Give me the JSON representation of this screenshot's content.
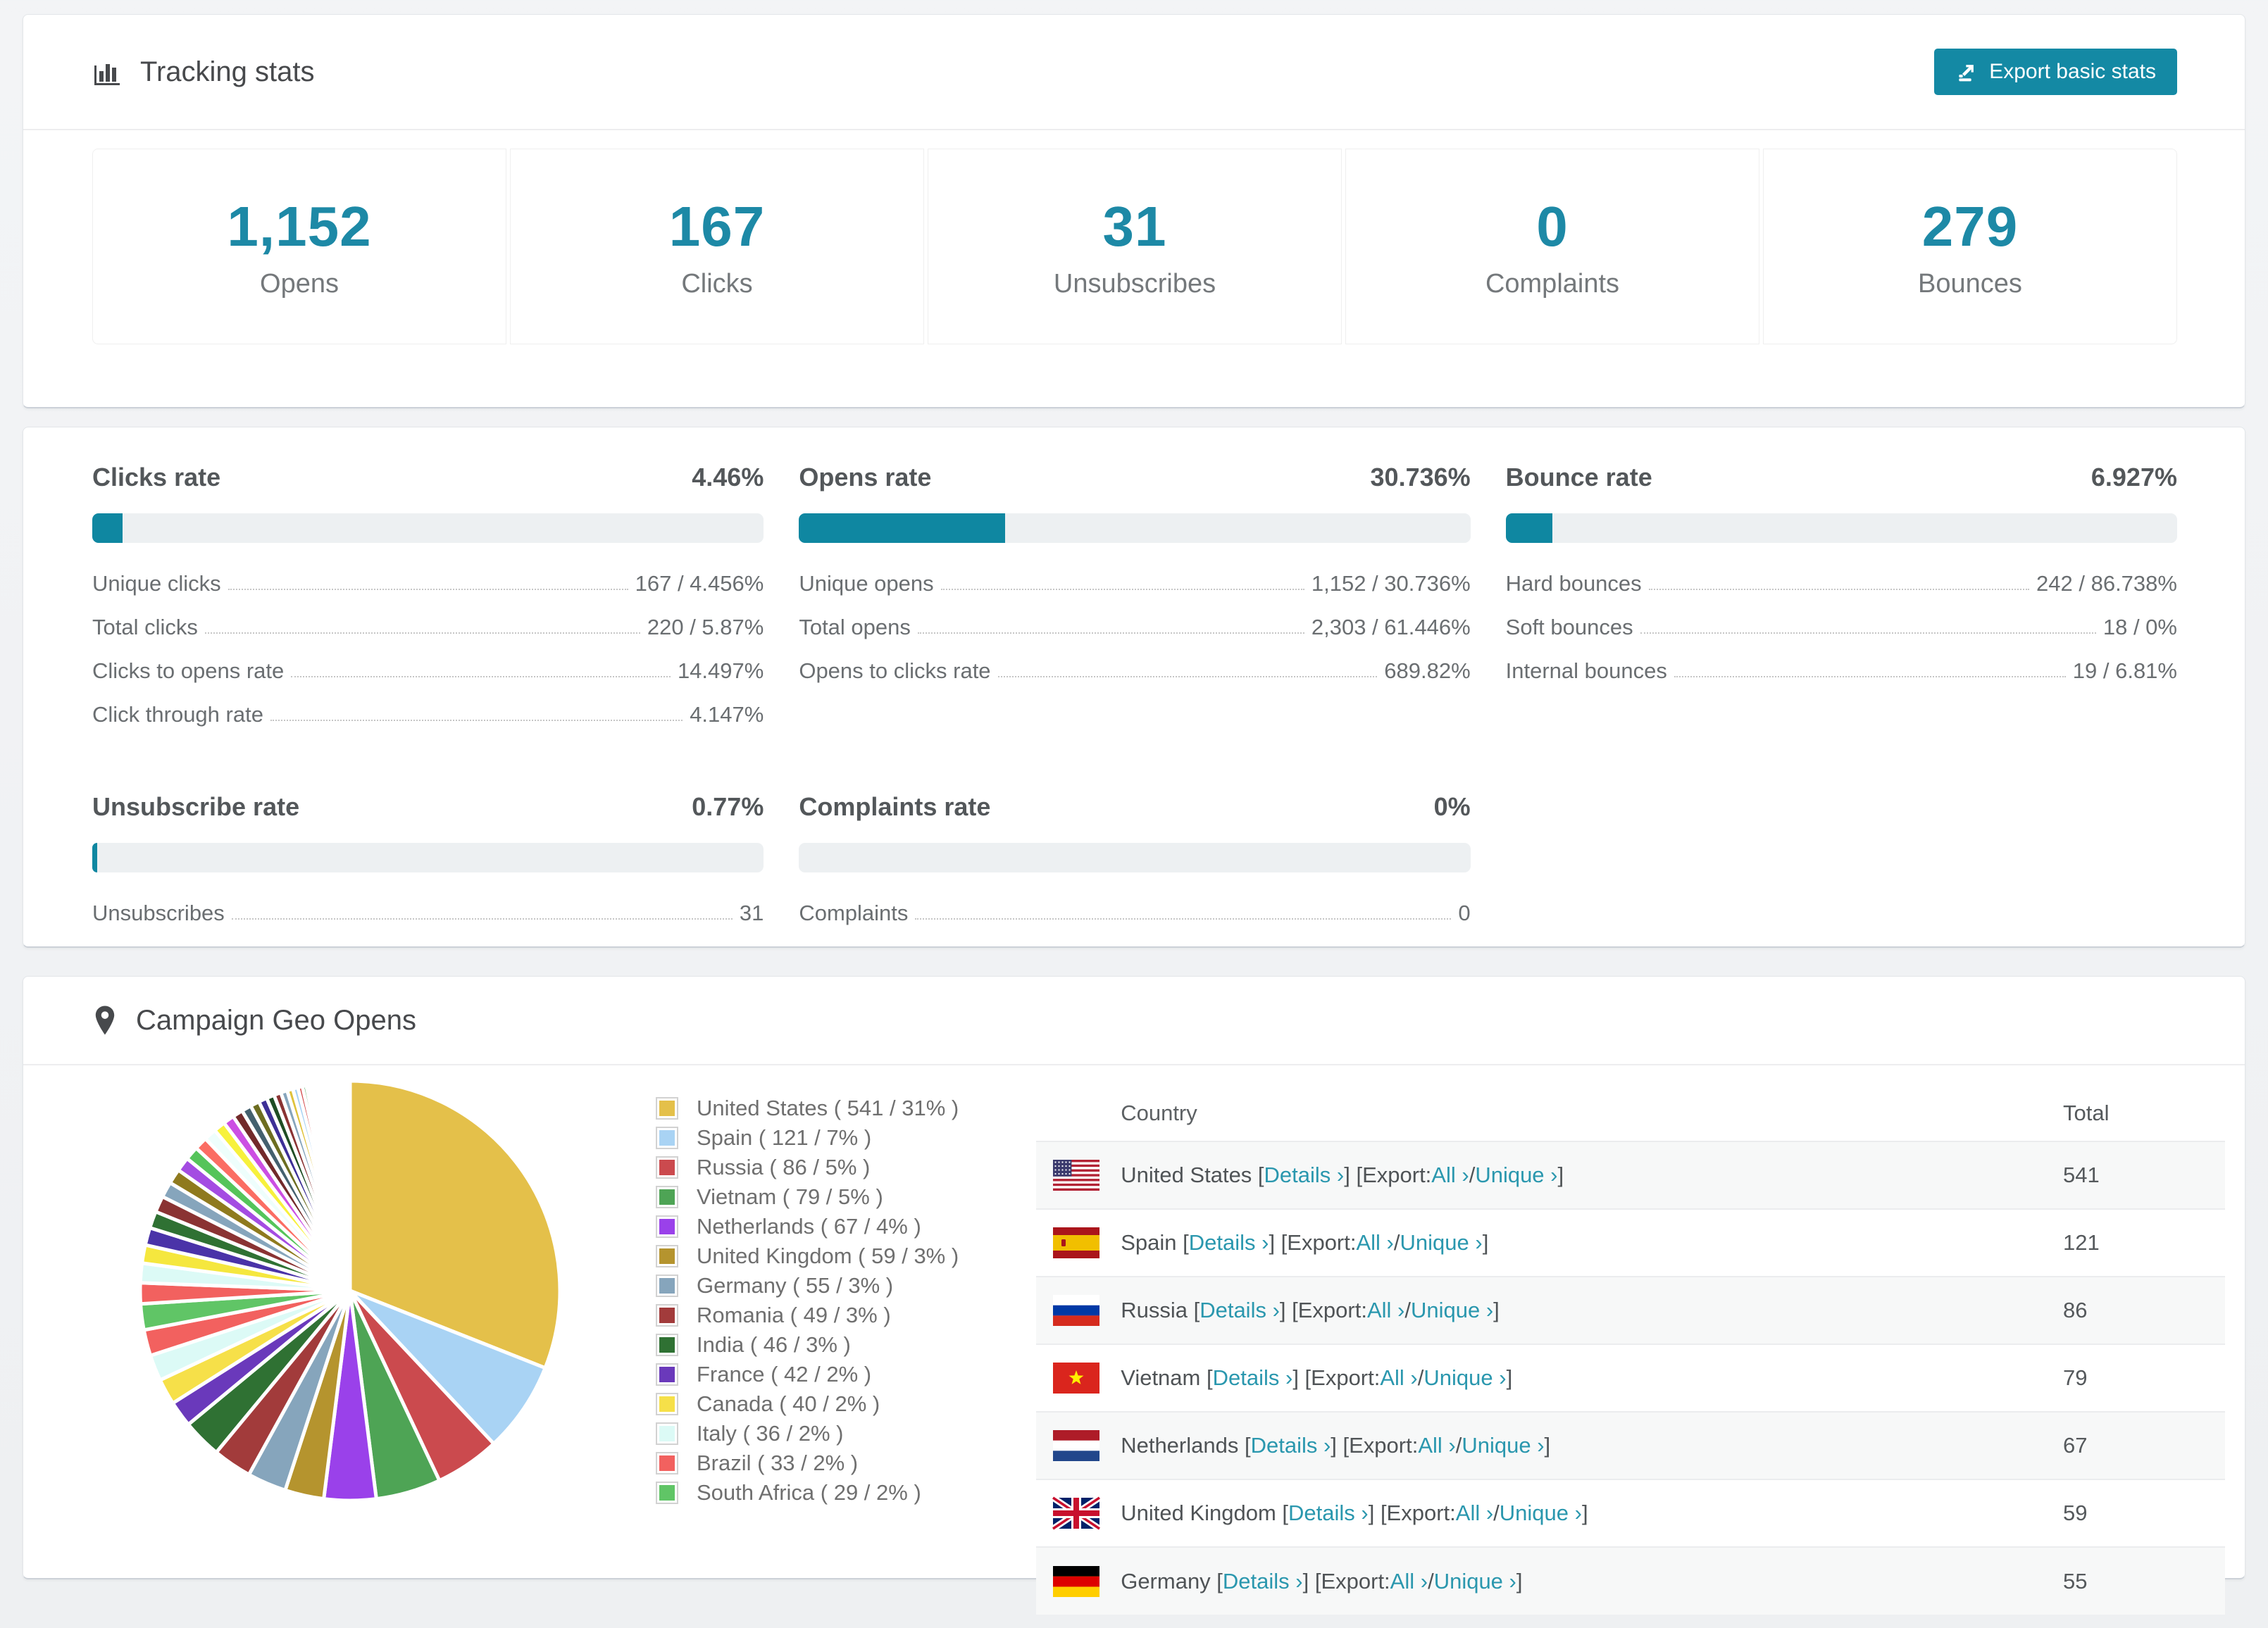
{
  "accent_color": "#0f87a1",
  "tracking": {
    "title": "Tracking stats",
    "export_button": "Export basic stats",
    "summary": [
      {
        "value": "1,152",
        "label": "Opens"
      },
      {
        "value": "167",
        "label": "Clicks"
      },
      {
        "value": "31",
        "label": "Unsubscribes"
      },
      {
        "value": "0",
        "label": "Complaints"
      },
      {
        "value": "279",
        "label": "Bounces"
      }
    ]
  },
  "rates": {
    "panels": [
      {
        "title": "Clicks rate",
        "value": "4.46%",
        "bar_percent": 4.46,
        "rows": [
          {
            "label": "Unique clicks",
            "value": "167 / 4.456%"
          },
          {
            "label": "Total clicks",
            "value": "220 / 5.87%"
          },
          {
            "label": "Clicks to opens rate",
            "value": "14.497%"
          },
          {
            "label": "Click through rate",
            "value": "4.147%"
          }
        ]
      },
      {
        "title": "Opens rate",
        "value": "30.736%",
        "bar_percent": 30.736,
        "rows": [
          {
            "label": "Unique opens",
            "value": "1,152 / 30.736%"
          },
          {
            "label": "Total opens",
            "value": "2,303 / 61.446%"
          },
          {
            "label": "Opens to clicks rate",
            "value": "689.82%"
          }
        ]
      },
      {
        "title": "Bounce rate",
        "value": "6.927%",
        "bar_percent": 6.927,
        "rows": [
          {
            "label": "Hard bounces",
            "value": "242 / 86.738%"
          },
          {
            "label": "Soft bounces",
            "value": "18 / 0%"
          },
          {
            "label": "Internal bounces",
            "value": "19 / 6.81%"
          }
        ]
      },
      {
        "title": "Unsubscribe rate",
        "value": "0.77%",
        "bar_percent": 0.77,
        "rows": [
          {
            "label": "Unsubscribes",
            "value": "31"
          }
        ]
      },
      {
        "title": "Complaints rate",
        "value": "0%",
        "bar_percent": 0,
        "rows": [
          {
            "label": "Complaints",
            "value": "0"
          }
        ]
      }
    ]
  },
  "geo": {
    "title": "Campaign Geo Opens",
    "table": {
      "headers": [
        "Country",
        "Total"
      ],
      "link_details": "Details",
      "export_prefix": "Export:",
      "link_all": "All",
      "link_unique": "Unique",
      "chevron": "›",
      "rows": [
        {
          "country": "United States",
          "flag": "us",
          "total": "541"
        },
        {
          "country": "Spain",
          "flag": "es",
          "total": "121"
        },
        {
          "country": "Russia",
          "flag": "ru",
          "total": "86"
        },
        {
          "country": "Vietnam",
          "flag": "vn",
          "total": "79"
        },
        {
          "country": "Netherlands",
          "flag": "nl",
          "total": "67"
        },
        {
          "country": "United Kingdom",
          "flag": "gb",
          "total": "59"
        },
        {
          "country": "Germany",
          "flag": "de",
          "total": "55"
        }
      ]
    }
  },
  "chart_data": {
    "type": "pie",
    "title": "Campaign Geo Opens",
    "legend_position": "right",
    "series": [
      {
        "name": "United States",
        "value": 541,
        "percent": 31,
        "color": "#e4c04a"
      },
      {
        "name": "Spain",
        "value": 121,
        "percent": 7,
        "color": "#a9d3f4"
      },
      {
        "name": "Russia",
        "value": 86,
        "percent": 5,
        "color": "#cb4a4e"
      },
      {
        "name": "Vietnam",
        "value": 79,
        "percent": 5,
        "color": "#4ea455"
      },
      {
        "name": "Netherlands",
        "value": 67,
        "percent": 4,
        "color": "#9a41ea"
      },
      {
        "name": "United Kingdom",
        "value": 59,
        "percent": 3,
        "color": "#b5942e"
      },
      {
        "name": "Germany",
        "value": 55,
        "percent": 3,
        "color": "#86a5bc"
      },
      {
        "name": "Romania",
        "value": 49,
        "percent": 3,
        "color": "#a23b3b"
      },
      {
        "name": "India",
        "value": 46,
        "percent": 3,
        "color": "#2f7133"
      },
      {
        "name": "France",
        "value": 42,
        "percent": 2,
        "color": "#6a39bb"
      },
      {
        "name": "Canada",
        "value": 40,
        "percent": 2,
        "color": "#f6e049"
      },
      {
        "name": "Italy",
        "value": 36,
        "percent": 2,
        "color": "#dcfaf6"
      },
      {
        "name": "Brazil",
        "value": 33,
        "percent": 2,
        "color": "#f2615f"
      },
      {
        "name": "South Africa",
        "value": 29,
        "percent": 2,
        "color": "#60c566"
      }
    ],
    "other_slices": {
      "percents": [
        1.6,
        1.5,
        1.4,
        1.35,
        1.3,
        1.25,
        1.2,
        1.15,
        1.1,
        1.05,
        1.0,
        0.95,
        0.9,
        0.85,
        0.8,
        0.75,
        0.7,
        0.65,
        0.6,
        0.55,
        0.5,
        0.45,
        0.4,
        0.35,
        0.3,
        0.27,
        0.24,
        0.21,
        0.18,
        0.15,
        0.12,
        0.1,
        0.08,
        0.07,
        0.06,
        0.05,
        0.04,
        0.03,
        0.03,
        0.02
      ],
      "colors": [
        "#f2615f",
        "#dcfaf6",
        "#f5e73e",
        "#4a33a8",
        "#2f7133",
        "#8a3333",
        "#86a5bc",
        "#8f7a1e",
        "#a44ce2",
        "#55c45a",
        "#fb6d63",
        "#eefefc",
        "#f7f13c",
        "#cc4fe3",
        "#722a2a",
        "#44606e",
        "#6d6d20",
        "#3d2f96",
        "#1f4d24",
        "#8a3333",
        "#86a5bc",
        "#dfc23c",
        "#a9d3f4",
        "#d24545",
        "#41a04a",
        "#8c50e2",
        "#b5942e",
        "#dcfaf6",
        "#f2615f",
        "#55c45a",
        "#cc4fe3",
        "#a9d3f4",
        "#e4c04a",
        "#cb4a4e",
        "#4ea455",
        "#9a41ea",
        "#b5942e",
        "#86a5bc",
        "#a23b3b",
        "#2f7133"
      ]
    }
  }
}
